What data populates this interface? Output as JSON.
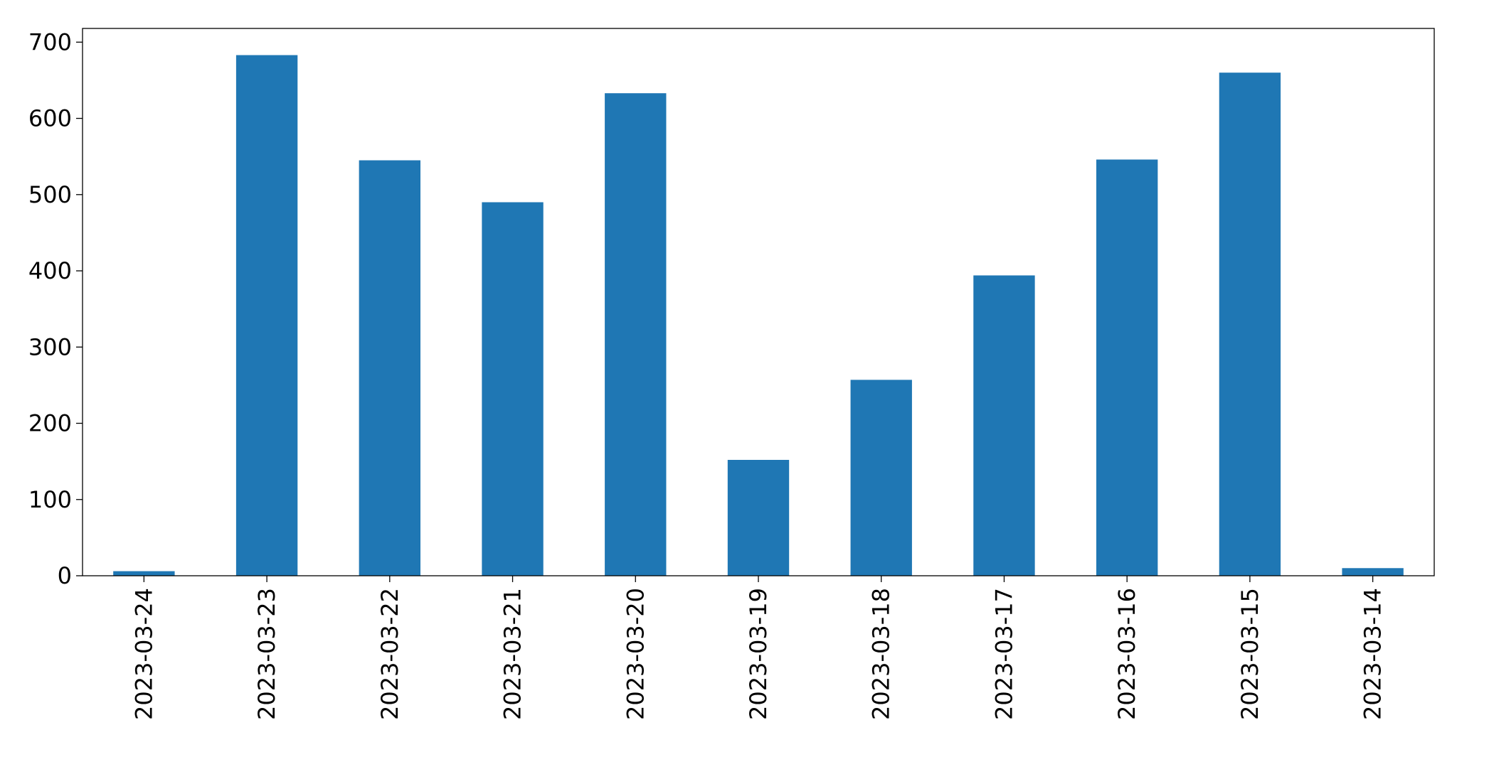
{
  "chart_data": {
    "type": "bar",
    "title": "",
    "xlabel": "",
    "ylabel": "",
    "categories": [
      "2023-03-24",
      "2023-03-23",
      "2023-03-22",
      "2023-03-21",
      "2023-03-20",
      "2023-03-19",
      "2023-03-18",
      "2023-03-17",
      "2023-03-16",
      "2023-03-15",
      "2023-03-14"
    ],
    "values": [
      6,
      683,
      545,
      490,
      633,
      152,
      257,
      394,
      546,
      660,
      10
    ],
    "ylim": [
      0,
      718
    ],
    "yticks": [
      0,
      100,
      200,
      300,
      400,
      500,
      600,
      700
    ],
    "bar_color": "#1f77b4",
    "grid": false,
    "legend": "none"
  }
}
